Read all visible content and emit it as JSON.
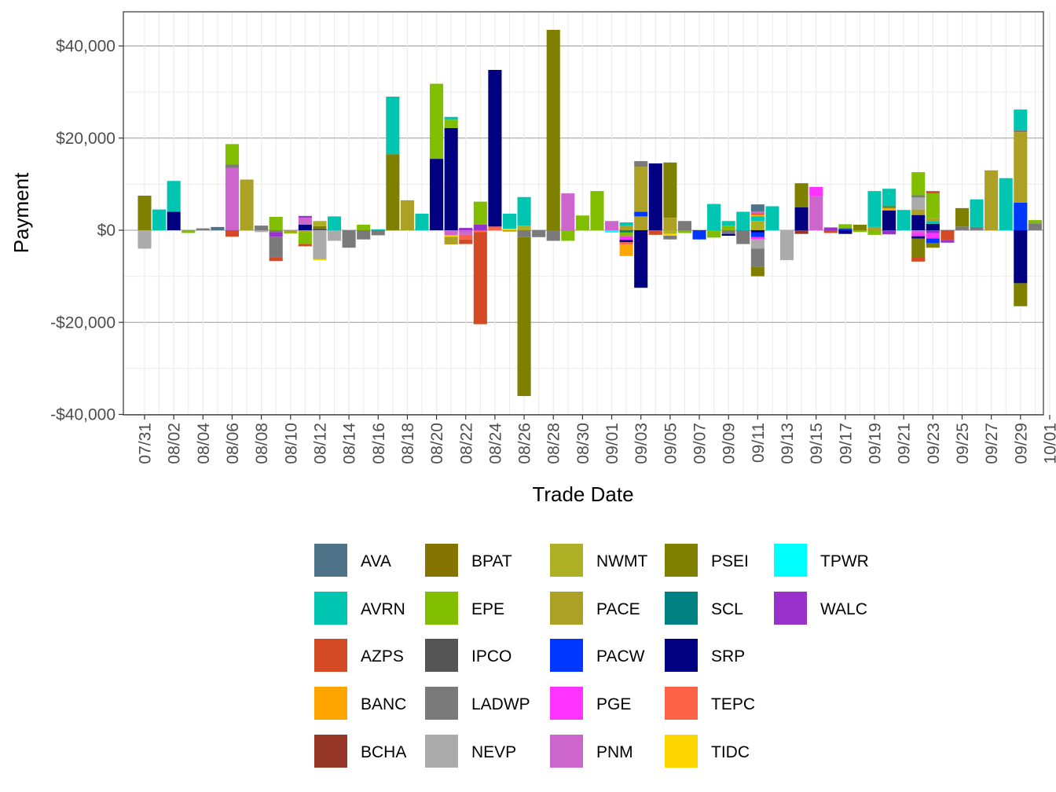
{
  "chart_data": {
    "type": "bar",
    "stacked": true,
    "title": "",
    "xlabel": "Trade Date",
    "ylabel": "Payment",
    "ylim": [
      -40000,
      48000
    ],
    "yticks": [
      {
        "value": 40000,
        "label": "$40,000"
      },
      {
        "value": 20000,
        "label": "$20,000"
      },
      {
        "value": 0,
        "label": "$0"
      },
      {
        "value": -20000,
        "label": "-$20,000"
      },
      {
        "value": -40000,
        "label": "-$40,000"
      }
    ],
    "xticks": [
      "07/31",
      "08/02",
      "08/04",
      "08/06",
      "08/08",
      "08/10",
      "08/12",
      "08/14",
      "08/16",
      "08/18",
      "08/20",
      "08/22",
      "08/24",
      "08/26",
      "08/28",
      "08/30",
      "09/01",
      "09/03",
      "09/05",
      "09/07",
      "09/09",
      "09/11",
      "09/13",
      "09/15",
      "09/17",
      "09/19",
      "09/21",
      "09/23",
      "09/25",
      "09/27",
      "09/29",
      "10/01"
    ],
    "legend_position": "bottom",
    "entities": [
      "AVA",
      "AVRN",
      "AZPS",
      "BANC",
      "BCHA",
      "BPAT",
      "EPE",
      "IPCO",
      "LADWP",
      "NEVP",
      "NWMT",
      "PACE",
      "PACW",
      "PGE",
      "PNM",
      "PSEI",
      "SCL",
      "SRP",
      "TEPC",
      "TIDC",
      "TPWR",
      "WALC"
    ],
    "colors": {
      "AVA": "#4E7389",
      "AVRN": "#00C5B0",
      "AZPS": "#D44A24",
      "BANC": "#FFA500",
      "BCHA": "#963626",
      "BPAT": "#857500",
      "EPE": "#82BE00",
      "IPCO": "#545454",
      "LADWP": "#7A7A7A",
      "NEVP": "#ABABAB",
      "NWMT": "#ADB024",
      "PACE": "#ACA124",
      "PACW": "#0037FF",
      "PGE": "#FF33FF",
      "PNM": "#CC66CC",
      "PSEI": "#808000",
      "SCL": "#008081",
      "SRP": "#000080",
      "TEPC": "#FF6347",
      "TIDC": "#FFD700",
      "TPWR": "#00FFFF",
      "WALC": "#9932CC"
    },
    "days": [
      {
        "date": "07/31",
        "stack": [
          [
            "PSEI",
            7500
          ],
          [
            "NEVP",
            -4000
          ]
        ]
      },
      {
        "date": "08/01",
        "stack": [
          [
            "AVRN",
            4500
          ]
        ]
      },
      {
        "date": "08/02",
        "stack": [
          [
            "SRP",
            4000
          ],
          [
            "AVRN",
            6700
          ]
        ]
      },
      {
        "date": "08/03",
        "stack": [
          [
            "EPE",
            -600
          ]
        ]
      },
      {
        "date": "08/04",
        "stack": [
          [
            "LADWP",
            400
          ]
        ]
      },
      {
        "date": "08/05",
        "stack": [
          [
            "AVA",
            700
          ]
        ]
      },
      {
        "date": "08/06",
        "stack": [
          [
            "PNM",
            13500
          ],
          [
            "LADWP",
            800
          ],
          [
            "EPE",
            4400
          ],
          [
            "AZPS",
            -1400
          ]
        ]
      },
      {
        "date": "08/07",
        "stack": [
          [
            "PACE",
            11000
          ]
        ]
      },
      {
        "date": "08/08",
        "stack": [
          [
            "LADWP",
            1000
          ],
          [
            "NEVP",
            -400
          ]
        ]
      },
      {
        "date": "08/09",
        "stack": [
          [
            "LADWP",
            -400
          ],
          [
            "EPE",
            2900
          ],
          [
            "WALC",
            -1000
          ],
          [
            "LADWP",
            -4500
          ],
          [
            "AZPS",
            -800
          ]
        ]
      },
      {
        "date": "08/10",
        "stack": [
          [
            "PACE",
            -400
          ],
          [
            "EPE",
            -300
          ]
        ]
      },
      {
        "date": "08/11",
        "stack": [
          [
            "SRP",
            1200
          ],
          [
            "PNM",
            1500
          ],
          [
            "WALC",
            400
          ],
          [
            "PACE",
            -400
          ],
          [
            "EPE",
            -2600
          ],
          [
            "AZPS",
            -500
          ]
        ]
      },
      {
        "date": "08/12",
        "stack": [
          [
            "IPCO",
            400
          ],
          [
            "PSEI",
            500
          ],
          [
            "NWMT",
            1100
          ],
          [
            "NEVP",
            -6300
          ],
          [
            "TIDC",
            -200
          ]
        ]
      },
      {
        "date": "08/13",
        "stack": [
          [
            "AVRN",
            3000
          ],
          [
            "NEVP",
            -2300
          ]
        ]
      },
      {
        "date": "08/14",
        "stack": [
          [
            "LADWP",
            -3800
          ]
        ]
      },
      {
        "date": "08/15",
        "stack": [
          [
            "EPE",
            1200
          ],
          [
            "LADWP",
            -2000
          ]
        ]
      },
      {
        "date": "08/16",
        "stack": [
          [
            "AVRN",
            200
          ],
          [
            "LADWP",
            -1100
          ]
        ]
      },
      {
        "date": "08/17",
        "stack": [
          [
            "PSEI",
            16500
          ],
          [
            "AVRN",
            12500
          ]
        ]
      },
      {
        "date": "08/18",
        "stack": [
          [
            "PACE",
            6500
          ]
        ]
      },
      {
        "date": "08/19",
        "stack": [
          [
            "AVRN",
            3600
          ]
        ]
      },
      {
        "date": "08/20",
        "stack": [
          [
            "SRP",
            15500
          ],
          [
            "EPE",
            16300
          ]
        ]
      },
      {
        "date": "08/21",
        "stack": [
          [
            "SRP",
            22200
          ],
          [
            "EPE",
            1800
          ],
          [
            "AVRN",
            600
          ],
          [
            "PNM",
            -1100
          ],
          [
            "TIDC",
            -300
          ],
          [
            "PACE",
            -1700
          ]
        ]
      },
      {
        "date": "08/22",
        "stack": [
          [
            "WALC",
            500
          ],
          [
            "PNM",
            -1000
          ],
          [
            "TEPC",
            -1000
          ],
          [
            "AZPS",
            -1000
          ]
        ]
      },
      {
        "date": "08/23",
        "stack": [
          [
            "WALC",
            1200
          ],
          [
            "EPE",
            5000
          ],
          [
            "TEPC",
            -400
          ],
          [
            "AZPS",
            -20000
          ]
        ]
      },
      {
        "date": "08/24",
        "stack": [
          [
            "TEPC",
            800
          ],
          [
            "SRP",
            34000
          ]
        ]
      },
      {
        "date": "08/25",
        "stack": [
          [
            "TIDC",
            300
          ],
          [
            "AVRN",
            3300
          ],
          [
            "PACE",
            -300
          ]
        ]
      },
      {
        "date": "08/26",
        "stack": [
          [
            "NWMT",
            1000
          ],
          [
            "AVRN",
            6200
          ],
          [
            "LADWP",
            -1500
          ],
          [
            "PSEI",
            -34500
          ]
        ]
      },
      {
        "date": "08/27",
        "stack": [
          [
            "LADWP",
            -1500
          ]
        ]
      },
      {
        "date": "08/28",
        "stack": [
          [
            "PSEI",
            43500
          ],
          [
            "LADWP",
            -2300
          ]
        ]
      },
      {
        "date": "08/29",
        "stack": [
          [
            "PNM",
            8000
          ],
          [
            "EPE",
            -2300
          ]
        ]
      },
      {
        "date": "08/30",
        "stack": [
          [
            "EPE",
            3200
          ]
        ]
      },
      {
        "date": "08/31",
        "stack": [
          [
            "EPE",
            8500
          ]
        ]
      },
      {
        "date": "09/01",
        "stack": [
          [
            "PNM",
            2000
          ],
          [
            "TPWR",
            -500
          ]
        ]
      },
      {
        "date": "09/02",
        "stack": [
          [
            "PACE",
            1000
          ],
          [
            "AVRN",
            700
          ],
          [
            "SCL",
            -500
          ],
          [
            "EPE",
            -800
          ],
          [
            "PGE",
            -800
          ],
          [
            "SRP",
            -500
          ],
          [
            "TEPC",
            -500
          ],
          [
            "BANC",
            -2500
          ]
        ]
      },
      {
        "date": "09/03",
        "stack": [
          [
            "PACE",
            3000
          ],
          [
            "PACW",
            1000
          ],
          [
            "PACE",
            9800
          ],
          [
            "LADWP",
            1200
          ],
          [
            "SRP",
            -12500
          ]
        ]
      },
      {
        "date": "09/04",
        "stack": [
          [
            "SRP",
            14500
          ],
          [
            "AZPS",
            -1000
          ]
        ]
      },
      {
        "date": "09/05",
        "stack": [
          [
            "PACE",
            2700
          ],
          [
            "PSEI",
            12000
          ],
          [
            "NWMT",
            -800
          ],
          [
            "TIDC",
            -400
          ],
          [
            "LADWP",
            -800
          ]
        ]
      },
      {
        "date": "09/06",
        "stack": [
          [
            "LADWP",
            2000
          ],
          [
            "EPE",
            -600
          ]
        ]
      },
      {
        "date": "09/07",
        "stack": [
          [
            "PACW",
            -2000
          ]
        ]
      },
      {
        "date": "09/08",
        "stack": [
          [
            "AVRN",
            5700
          ],
          [
            "EPE",
            -1600
          ]
        ]
      },
      {
        "date": "09/09",
        "stack": [
          [
            "EPE",
            1000
          ],
          [
            "AVRN",
            1000
          ],
          [
            "LADWP",
            -800
          ],
          [
            "SRP",
            -400
          ]
        ]
      },
      {
        "date": "09/10",
        "stack": [
          [
            "AVRN",
            4000
          ],
          [
            "LADWP",
            -3000
          ]
        ]
      },
      {
        "date": "09/11",
        "stack": [
          [
            "NWMT",
            2000
          ],
          [
            "AVRN",
            1000
          ],
          [
            "BANC",
            400
          ],
          [
            "AZPS",
            200
          ],
          [
            "PNM",
            500
          ],
          [
            "AVA",
            1500
          ],
          [
            "SRP",
            -500
          ],
          [
            "PACW",
            -1000
          ],
          [
            "PGE",
            -500
          ],
          [
            "NEVP",
            -2000
          ],
          [
            "LADWP",
            -4000
          ],
          [
            "PSEI",
            -2000
          ]
        ]
      },
      {
        "date": "09/12",
        "stack": [
          [
            "AVRN",
            5200
          ]
        ]
      },
      {
        "date": "09/13",
        "stack": [
          [
            "NEVP",
            -6500
          ]
        ]
      },
      {
        "date": "09/14",
        "stack": [
          [
            "SRP",
            5000
          ],
          [
            "PSEI",
            5200
          ],
          [
            "BCHA",
            -800
          ]
        ]
      },
      {
        "date": "09/15",
        "stack": [
          [
            "PNM",
            7500
          ],
          [
            "PGE",
            1900
          ]
        ]
      },
      {
        "date": "09/16",
        "stack": [
          [
            "WALC",
            600
          ],
          [
            "AZPS",
            -600
          ]
        ]
      },
      {
        "date": "09/17",
        "stack": [
          [
            "PACW",
            400
          ],
          [
            "EPE",
            900
          ],
          [
            "SRP",
            -800
          ]
        ]
      },
      {
        "date": "09/18",
        "stack": [
          [
            "PSEI",
            1200
          ],
          [
            "EPE",
            -400
          ]
        ]
      },
      {
        "date": "09/19",
        "stack": [
          [
            "PACE",
            700
          ],
          [
            "AVRN",
            7800
          ],
          [
            "EPE",
            -1000
          ]
        ]
      },
      {
        "date": "09/20",
        "stack": [
          [
            "SRP",
            4300
          ],
          [
            "BANC",
            500
          ],
          [
            "PSEI",
            400
          ],
          [
            "AVRN",
            3800
          ],
          [
            "WALC",
            -900
          ]
        ]
      },
      {
        "date": "09/21",
        "stack": [
          [
            "AVRN",
            4400
          ]
        ]
      },
      {
        "date": "09/22",
        "stack": [
          [
            "SRP",
            3300
          ],
          [
            "PACE",
            1200
          ],
          [
            "NEVP",
            2600
          ],
          [
            "LADWP",
            500
          ],
          [
            "EPE",
            5000
          ],
          [
            "PNM",
            -600
          ],
          [
            "PGE",
            -700
          ],
          [
            "SRP",
            -500
          ],
          [
            "PSEI",
            -4000
          ],
          [
            "AZPS",
            -1000
          ]
        ]
      },
      {
        "date": "09/23",
        "stack": [
          [
            "SRP",
            1400
          ],
          [
            "AVRN",
            600
          ],
          [
            "PACE",
            600
          ],
          [
            "EPE",
            5400
          ],
          [
            "AZPS",
            500
          ],
          [
            "WALC",
            -600
          ],
          [
            "PGE",
            -1200
          ],
          [
            "PACW",
            -1000
          ],
          [
            "PSEI",
            -1000
          ]
        ]
      },
      {
        "date": "09/24",
        "stack": [
          [
            "AZPS",
            -2200
          ],
          [
            "WALC",
            -500
          ]
        ]
      },
      {
        "date": "09/25",
        "stack": [
          [
            "LADWP",
            800
          ],
          [
            "PSEI",
            4000
          ]
        ]
      },
      {
        "date": "09/26",
        "stack": [
          [
            "LADWP",
            700
          ],
          [
            "AVRN",
            6000
          ]
        ]
      },
      {
        "date": "09/27",
        "stack": [
          [
            "PACE",
            13000
          ]
        ]
      },
      {
        "date": "09/28",
        "stack": [
          [
            "AVRN",
            11300
          ]
        ]
      },
      {
        "date": "09/29",
        "stack": [
          [
            "PACW",
            6000
          ],
          [
            "PACE",
            15300
          ],
          [
            "LADWP",
            500
          ],
          [
            "AVRN",
            4400
          ],
          [
            "SRP",
            -11500
          ],
          [
            "PSEI",
            -5000
          ]
        ]
      },
      {
        "date": "09/30",
        "stack": [
          [
            "LADWP",
            1500
          ],
          [
            "EPE",
            700
          ]
        ]
      }
    ]
  }
}
